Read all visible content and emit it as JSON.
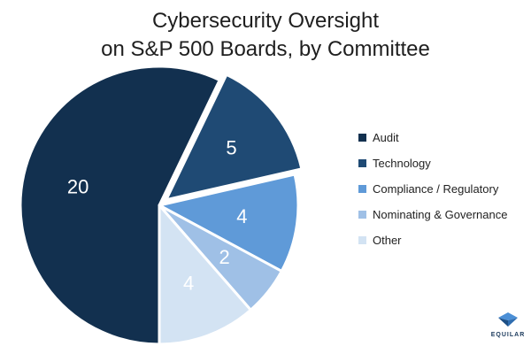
{
  "chart_data": {
    "type": "pie",
    "title": "Cybersecurity Oversight\non S&P 500 Boards, by Committee",
    "title_lines": [
      "Cybersecurity Oversight",
      "on S&P 500 Boards, by Committee"
    ],
    "slices": [
      {
        "label": "Audit",
        "value": 20,
        "color": "#12304f",
        "label_color": "#ffffff"
      },
      {
        "label": "Technology",
        "value": 5,
        "color": "#1f4a74",
        "label_color": "#ffffff"
      },
      {
        "label": "Compliance / Regulatory",
        "value": 4,
        "color": "#5f9ad8",
        "label_color": "#ffffff"
      },
      {
        "label": "Nominating & Governance",
        "value": 2,
        "color": "#9fc0e6",
        "label_color": "#ffffff"
      },
      {
        "label": "Other",
        "value": 4,
        "color": "#d3e3f3",
        "label_color": "#ffffff"
      }
    ],
    "legend_position": "right",
    "start": "bottom, clockwise",
    "exploded_slice": "Technology"
  },
  "logo": {
    "text": "EQUILAR"
  }
}
